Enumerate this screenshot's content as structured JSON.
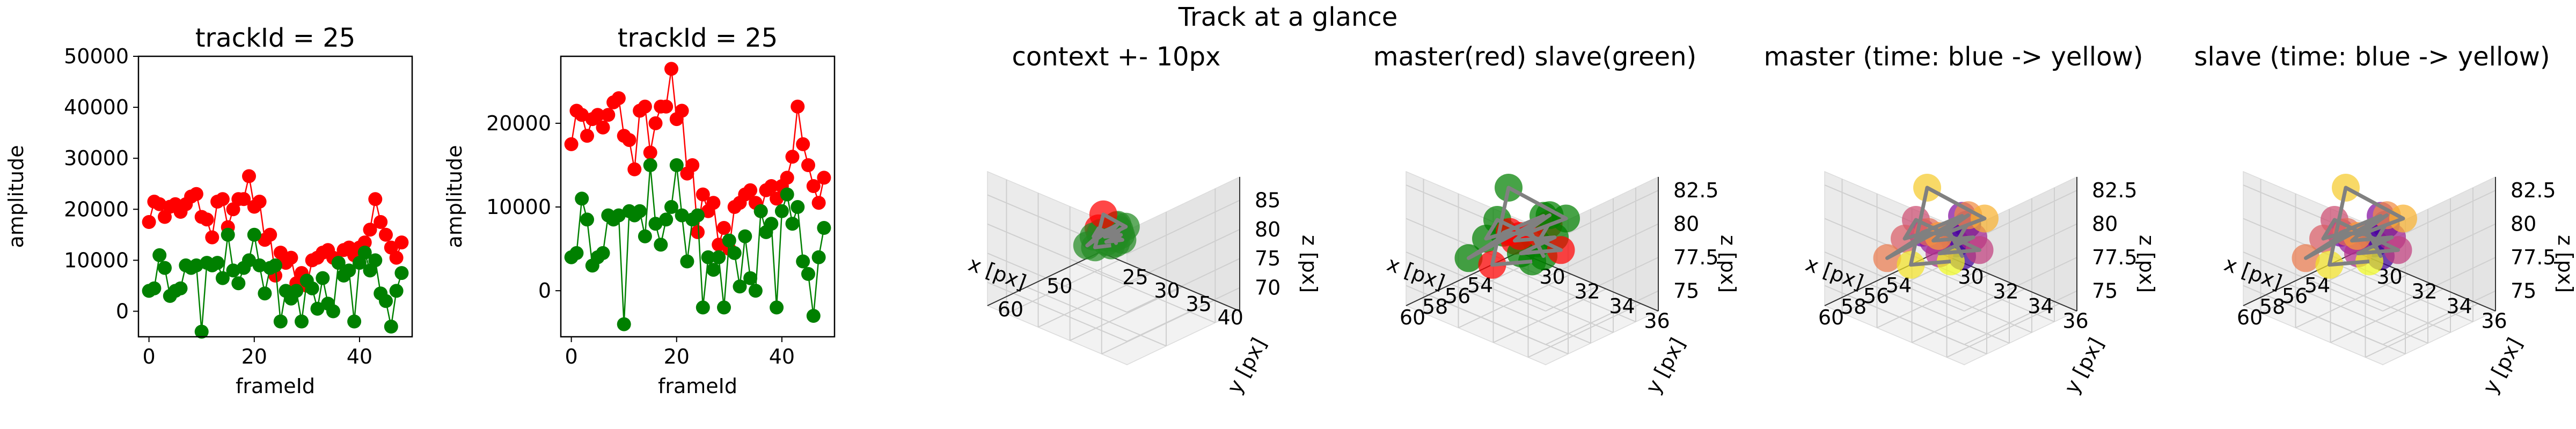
{
  "figure": {
    "suptitle": "Track at a glance"
  },
  "chart_data": [
    {
      "type": "scatter",
      "title": "trackId = 25",
      "xlabel": "frameId",
      "ylabel": "amplitude",
      "xlim": [
        -2,
        50
      ],
      "ylim": [
        -5000,
        50000
      ],
      "xticks": [
        0,
        20,
        40
      ],
      "yticks": [
        0,
        10000,
        20000,
        30000,
        40000,
        50000
      ],
      "colors": {
        "red": "#ff0000",
        "green": "#008000"
      },
      "series": [
        {
          "color": "red",
          "x": [
            0,
            1,
            2,
            3,
            4,
            5,
            6,
            7,
            8,
            9,
            10,
            11,
            12,
            13,
            14,
            15,
            16,
            17,
            18,
            19,
            20,
            21,
            22,
            23,
            24,
            25,
            26,
            27,
            28,
            29,
            30,
            31,
            32,
            33,
            34,
            35,
            36,
            37,
            38,
            39,
            40,
            41,
            42,
            43,
            44,
            45,
            46,
            47,
            48
          ],
          "values": [
            17500,
            21500,
            21000,
            18500,
            20500,
            21000,
            19500,
            21000,
            22500,
            23000,
            18500,
            18000,
            14500,
            21500,
            22000,
            16500,
            20000,
            22000,
            22000,
            26500,
            20500,
            21500,
            14000,
            15000,
            7000,
            11500,
            9500,
            10500,
            5500,
            7500,
            5000,
            10000,
            10500,
            11500,
            12000,
            10500,
            9500,
            12000,
            12500,
            11000,
            12500,
            13500,
            16000,
            22000,
            17500,
            15000,
            12500,
            10500,
            13500
          ]
        },
        {
          "color": "green",
          "x": [
            0,
            1,
            2,
            3,
            4,
            5,
            6,
            7,
            8,
            9,
            10,
            11,
            12,
            13,
            14,
            15,
            16,
            17,
            18,
            19,
            20,
            21,
            22,
            23,
            24,
            25,
            26,
            27,
            28,
            29,
            30,
            31,
            32,
            33,
            34,
            35,
            36,
            37,
            38,
            39,
            40,
            41,
            42,
            43,
            44,
            45,
            46,
            47,
            48
          ],
          "values": [
            4000,
            4500,
            11000,
            8500,
            3000,
            4000,
            4500,
            9000,
            8500,
            9000,
            -4000,
            9500,
            9000,
            9500,
            6500,
            15000,
            8000,
            5500,
            8500,
            10000,
            15000,
            9000,
            3500,
            8500,
            9000,
            -2000,
            4000,
            2500,
            4000,
            -2000,
            6000,
            4500,
            500,
            6500,
            1500,
            0,
            9500,
            7000,
            8000,
            -2000,
            9500,
            11500,
            8000,
            10000,
            3500,
            2000,
            -3000,
            4000,
            7500
          ]
        }
      ]
    },
    {
      "type": "scatter",
      "title": "trackId = 25",
      "xlabel": "frameId",
      "ylabel": "amplitude",
      "xlim": [
        -2,
        50
      ],
      "ylim": [
        -5500,
        28000
      ],
      "xticks": [
        0,
        20,
        40
      ],
      "yticks": [
        0,
        10000,
        20000
      ],
      "colors": {
        "red": "#ff0000",
        "green": "#008000"
      },
      "series": [
        {
          "color": "red",
          "x": [
            0,
            1,
            2,
            3,
            4,
            5,
            6,
            7,
            8,
            9,
            10,
            11,
            12,
            13,
            14,
            15,
            16,
            17,
            18,
            19,
            20,
            21,
            22,
            23,
            24,
            25,
            26,
            27,
            28,
            29,
            30,
            31,
            32,
            33,
            34,
            35,
            36,
            37,
            38,
            39,
            40,
            41,
            42,
            43,
            44,
            45,
            46,
            47,
            48
          ],
          "values": [
            17500,
            21500,
            21000,
            18500,
            20500,
            21000,
            19500,
            21000,
            22500,
            23000,
            18500,
            18000,
            14500,
            21500,
            22000,
            16500,
            20000,
            22000,
            22000,
            26500,
            20500,
            21500,
            14000,
            15000,
            7000,
            11500,
            9500,
            10500,
            5500,
            7500,
            5000,
            10000,
            10500,
            11500,
            12000,
            10500,
            9500,
            12000,
            12500,
            11000,
            12500,
            13500,
            16000,
            22000,
            17500,
            15000,
            12500,
            10500,
            13500
          ]
        },
        {
          "color": "green",
          "x": [
            0,
            1,
            2,
            3,
            4,
            5,
            6,
            7,
            8,
            9,
            10,
            11,
            12,
            13,
            14,
            15,
            16,
            17,
            18,
            19,
            20,
            21,
            22,
            23,
            24,
            25,
            26,
            27,
            28,
            29,
            30,
            31,
            32,
            33,
            34,
            35,
            36,
            37,
            38,
            39,
            40,
            41,
            42,
            43,
            44,
            45,
            46,
            47,
            48
          ],
          "values": [
            4000,
            4500,
            11000,
            8500,
            3000,
            4000,
            4500,
            9000,
            8500,
            9000,
            -4000,
            9500,
            9000,
            9500,
            6500,
            15000,
            8000,
            5500,
            8500,
            10000,
            15000,
            9000,
            3500,
            8500,
            9000,
            -2000,
            4000,
            2500,
            4000,
            -2000,
            6000,
            4500,
            500,
            6500,
            1500,
            0,
            9500,
            7000,
            8000,
            -2000,
            9500,
            11500,
            8000,
            10000,
            3500,
            2000,
            -3000,
            4000,
            7500
          ]
        }
      ]
    },
    {
      "type": "scatter",
      "projection": "3d",
      "title": "context +- 10px",
      "xlabel": "x [px]",
      "ylabel": "y [px]",
      "zlabel": "z [px]",
      "xlim": [
        45,
        68
      ],
      "ylim": [
        22,
        44
      ],
      "zlim": [
        66,
        89
      ],
      "xticks": [
        50,
        60
      ],
      "yticks": [
        25,
        30,
        35,
        40
      ],
      "zticks": [
        70,
        75,
        80,
        85
      ],
      "grid": true,
      "colors": {
        "points": "#228b22",
        "highlight": "#ff0000",
        "path": "#808080"
      },
      "points": [
        [
          54,
          32,
          78
        ],
        [
          55,
          32,
          77
        ],
        [
          56,
          33,
          77
        ],
        [
          57,
          33,
          79
        ],
        [
          58,
          32,
          79
        ],
        [
          56,
          33,
          80
        ],
        [
          57,
          32,
          78
        ],
        [
          55,
          33,
          78
        ],
        [
          58,
          33,
          78
        ],
        [
          56,
          34,
          78
        ],
        [
          57,
          31,
          79
        ],
        [
          58,
          31,
          78
        ],
        [
          59,
          33,
          80
        ],
        [
          58,
          30,
          76
        ],
        [
          57,
          34,
          81
        ],
        [
          55,
          31,
          77
        ],
        [
          54,
          33,
          79
        ],
        [
          56,
          31,
          81
        ],
        [
          59,
          32,
          77
        ],
        [
          57,
          33,
          77
        ]
      ]
    },
    {
      "type": "scatter",
      "projection": "3d",
      "title": "master(red) slave(green)",
      "xlabel": "x [px]",
      "ylabel": "y [px]",
      "zlabel": "z [px]",
      "xlim": [
        52,
        62
      ],
      "ylim": [
        29,
        37
      ],
      "zlim": [
        73.5,
        83.5
      ],
      "xticks": [
        54,
        56,
        58,
        60
      ],
      "yticks": [
        30,
        32,
        34,
        36
      ],
      "zticks": [
        75.0,
        77.5,
        80.0,
        82.5
      ],
      "grid": true,
      "colors": {
        "master": "#ff0000",
        "slave": "#008000",
        "path": "#808080"
      },
      "points": [
        [
          54,
          32,
          78
        ],
        [
          55,
          32,
          77
        ],
        [
          56,
          33,
          77
        ],
        [
          57,
          33,
          79
        ],
        [
          58,
          32,
          79
        ],
        [
          56,
          33,
          80
        ],
        [
          57,
          32,
          78
        ],
        [
          55,
          33,
          78
        ],
        [
          58,
          33,
          78
        ],
        [
          56,
          34,
          78
        ],
        [
          57,
          31,
          79
        ],
        [
          58,
          31,
          78
        ],
        [
          59,
          33,
          80
        ],
        [
          58,
          30,
          76
        ],
        [
          57,
          34,
          81
        ],
        [
          55,
          31,
          77
        ],
        [
          54,
          33,
          79
        ],
        [
          56,
          31,
          81
        ],
        [
          59,
          32,
          77
        ],
        [
          57,
          33,
          77
        ]
      ]
    },
    {
      "type": "scatter",
      "projection": "3d",
      "title": "master (time: blue -> yellow)",
      "xlabel": "x [px]",
      "ylabel": "y [px]",
      "zlabel": "z [px]",
      "xlim": [
        52,
        62
      ],
      "ylim": [
        29,
        37
      ],
      "zlim": [
        73.5,
        83.5
      ],
      "xticks": [
        54,
        56,
        58,
        60
      ],
      "yticks": [
        30,
        32,
        34,
        36
      ],
      "zticks": [
        75.0,
        77.5,
        80.0,
        82.5
      ],
      "grid": true,
      "colormap": "plasma",
      "colors": {
        "path": "#808080"
      },
      "points": [
        [
          54,
          32,
          78
        ],
        [
          55,
          32,
          77
        ],
        [
          56,
          33,
          77
        ],
        [
          57,
          33,
          79
        ],
        [
          58,
          32,
          79
        ],
        [
          56,
          33,
          80
        ],
        [
          57,
          32,
          78
        ],
        [
          55,
          33,
          78
        ],
        [
          58,
          33,
          78
        ],
        [
          56,
          34,
          78
        ],
        [
          57,
          31,
          79
        ],
        [
          58,
          31,
          78
        ],
        [
          59,
          33,
          80
        ],
        [
          58,
          30,
          76
        ],
        [
          57,
          34,
          81
        ],
        [
          55,
          31,
          77
        ],
        [
          54,
          33,
          79
        ],
        [
          56,
          31,
          81
        ],
        [
          59,
          32,
          77
        ],
        [
          57,
          33,
          77
        ]
      ]
    },
    {
      "type": "scatter",
      "projection": "3d",
      "title": "slave (time: blue -> yellow)",
      "xlabel": "x [px]",
      "ylabel": "y [px]",
      "zlabel": "z [px]",
      "xlim": [
        52,
        62
      ],
      "ylim": [
        29,
        37
      ],
      "zlim": [
        73.5,
        83.5
      ],
      "xticks": [
        54,
        56,
        58,
        60
      ],
      "yticks": [
        30,
        32,
        34,
        36
      ],
      "zticks": [
        75.0,
        77.5,
        80.0,
        82.5
      ],
      "grid": true,
      "colormap": "plasma",
      "colors": {
        "path": "#808080"
      },
      "points": [
        [
          54,
          32,
          78
        ],
        [
          55,
          32,
          77
        ],
        [
          56,
          33,
          77
        ],
        [
          57,
          33,
          79
        ],
        [
          58,
          32,
          79
        ],
        [
          56,
          33,
          80
        ],
        [
          57,
          32,
          78
        ],
        [
          55,
          33,
          78
        ],
        [
          58,
          33,
          78
        ],
        [
          56,
          34,
          78
        ],
        [
          57,
          31,
          79
        ],
        [
          58,
          31,
          78
        ],
        [
          59,
          33,
          80
        ],
        [
          58,
          30,
          76
        ],
        [
          57,
          34,
          81
        ],
        [
          55,
          31,
          77
        ],
        [
          54,
          33,
          79
        ],
        [
          56,
          31,
          81
        ],
        [
          59,
          32,
          77
        ],
        [
          57,
          33,
          77
        ]
      ]
    }
  ]
}
